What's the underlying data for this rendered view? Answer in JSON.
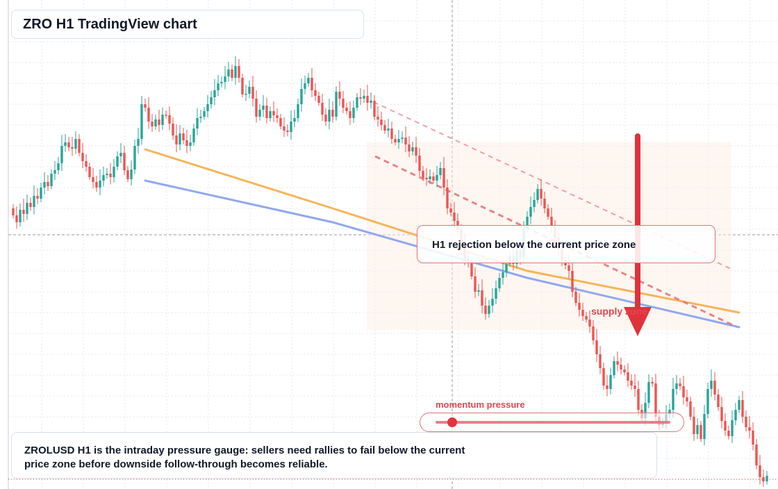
{
  "header": {
    "title": "ZRO H1 TradingView chart"
  },
  "annotations": {
    "rejection_callout": "H1 rejection below the current price zone",
    "zone_label": "supply zone",
    "gauge_label": "momentum pressure",
    "note": "ZROLUSD H1 is the intraday pressure gauge: sellers need rallies to fail below the current price zone before downside follow-through becomes reliable."
  },
  "gauge": {
    "level": 0.07
  },
  "colors": {
    "bull": "#26a69a",
    "bear": "#ef5350",
    "orange_line": "#f6b45a",
    "blue_line": "#8fa8ee",
    "accent_red": "#e0323b",
    "grid": "#e3e7ee"
  },
  "chart_data": {
    "type": "candlestick",
    "symbol": "ZROLUSD",
    "timeframe": "H1",
    "y_range": [
      0,
      700
    ],
    "start_open": 300,
    "closes": [
      310,
      320,
      302,
      308,
      292,
      298,
      282,
      286,
      270,
      262,
      268,
      250,
      245,
      235,
      210,
      205,
      212,
      214,
      200,
      220,
      232,
      240,
      255,
      262,
      270,
      260,
      252,
      250,
      255,
      240,
      225,
      220,
      245,
      258,
      244,
      210,
      200,
      150,
      155,
      175,
      182,
      172,
      180,
      165,
      166,
      178,
      195,
      208,
      192,
      202,
      210,
      205,
      185,
      170,
      168,
      160,
      150,
      140,
      130,
      120,
      118,
      110,
      100,
      112,
      95,
      112,
      136,
      135,
      125,
      142,
      168,
      158,
      152,
      170,
      160,
      166,
      170,
      182,
      188,
      190,
      175,
      170,
      150,
      128,
      120,
      112,
      130,
      138,
      148,
      165,
      175,
      158,
      168,
      132,
      142,
      155,
      160,
      170,
      155,
      140,
      142,
      138,
      148,
      145,
      168,
      172,
      180,
      188,
      185,
      200,
      205,
      200,
      198,
      208,
      218,
      212,
      224,
      246,
      256,
      258,
      254,
      260,
      252,
      242,
      270,
      300,
      306,
      318,
      330,
      350,
      372,
      378,
      398,
      420,
      418,
      440,
      452,
      440,
      430,
      415,
      400,
      392,
      380,
      368,
      380,
      360,
      370,
      330,
      312,
      298,
      288,
      272,
      286,
      300,
      312,
      326,
      342,
      358,
      375,
      382,
      390,
      420,
      436,
      446,
      455,
      460,
      470,
      490,
      510,
      530,
      555,
      560,
      540,
      520,
      525,
      532,
      536,
      548,
      555,
      560,
      590,
      602,
      580,
      550,
      552,
      600,
      612,
      608,
      596,
      590,
      560,
      552,
      556,
      572,
      578,
      600,
      625,
      612,
      632,
      596,
      560,
      548,
      568,
      586,
      606,
      620,
      628,
      605,
      590,
      576,
      600,
      615,
      620,
      640,
      670,
      687,
      693,
      685
    ],
    "lines": [
      {
        "name": "",
        "points": [
          [
            38,
            215
          ],
          [
            92,
            300
          ],
          [
            148,
            390
          ],
          [
            209,
            450
          ]
        ]
      },
      {
        "name": "",
        "points": [
          [
            38,
            260
          ],
          [
            92,
            320
          ],
          [
            148,
            400
          ],
          [
            209,
            471
          ]
        ]
      }
    ],
    "levels": {
      "current_price": 338
    }
  }
}
